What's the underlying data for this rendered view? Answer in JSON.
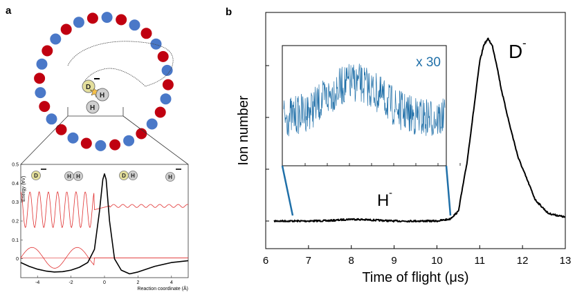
{
  "panels": {
    "a": {
      "label": "a"
    },
    "b": {
      "label": "b"
    }
  },
  "colors": {
    "red": "#c00010",
    "blue": "#4a78c8",
    "trace": "#000000",
    "inset": "#1f6fa8",
    "wave": "#e03030"
  },
  "chart_data": [
    {
      "type": "line",
      "panel": "a-inset",
      "ylabel": "Energy (eV)",
      "xlabel": "Reaction coordinate (Å)",
      "xlim": [
        -5,
        5
      ],
      "ylim": [
        -0.1,
        0.5
      ],
      "xticks": [
        -4,
        -2,
        0,
        2,
        4
      ],
      "yticks": [
        0,
        0.1,
        0.2,
        0.3,
        0.4,
        0.5
      ],
      "ytick_labels": [
        "0",
        "0.1",
        "0.2",
        "0.3",
        "0.4",
        "0.5"
      ],
      "species": [
        {
          "atom": "D",
          "charge": "−"
        },
        {
          "atoms": [
            "H",
            "H"
          ]
        },
        {
          "atoms": [
            "D",
            "H"
          ]
        },
        {
          "atom": "H",
          "charge": "−"
        }
      ],
      "series": [
        {
          "role": "potential",
          "x": [
            -5,
            -4.5,
            -4,
            -3.5,
            -3,
            -2.5,
            -2,
            -1.5,
            -1,
            -0.6,
            -0.3,
            -0.1,
            0,
            0.1,
            0.3,
            0.6,
            1,
            1.5,
            2,
            3,
            4,
            5
          ],
          "y": [
            -0.02,
            -0.04,
            -0.055,
            -0.065,
            -0.07,
            -0.068,
            -0.06,
            -0.045,
            -0.02,
            0.05,
            0.25,
            0.42,
            0.45,
            0.42,
            0.2,
            0.0,
            -0.06,
            -0.08,
            -0.07,
            -0.04,
            -0.02,
            -0.01
          ]
        }
      ]
    },
    {
      "type": "line",
      "panel": "b",
      "xlabel": "Time of flight (μs)",
      "ylabel": "Ion number",
      "xlim": [
        6,
        13
      ],
      "xticks": [
        6,
        7,
        8,
        9,
        10,
        11,
        12,
        13
      ],
      "annotations": {
        "peak_D": "D",
        "peak_H": "H",
        "charge": "-",
        "inset_scale": "x 30"
      },
      "series": [
        {
          "x": [
            6.2,
            6.5,
            7,
            7.5,
            8,
            8.5,
            9,
            9.5,
            10,
            10.3,
            10.5,
            10.7,
            10.9,
            11.0,
            11.1,
            11.2,
            11.3,
            11.4,
            11.5,
            11.7,
            11.9,
            12.1,
            12.3,
            12.6,
            13.0
          ],
          "y": [
            0.05,
            0.05,
            0.05,
            0.052,
            0.06,
            0.055,
            0.05,
            0.05,
            0.05,
            0.06,
            0.1,
            0.35,
            0.7,
            0.88,
            0.97,
            1.0,
            0.96,
            0.86,
            0.74,
            0.55,
            0.38,
            0.27,
            0.16,
            0.09,
            0.07
          ]
        }
      ]
    }
  ]
}
